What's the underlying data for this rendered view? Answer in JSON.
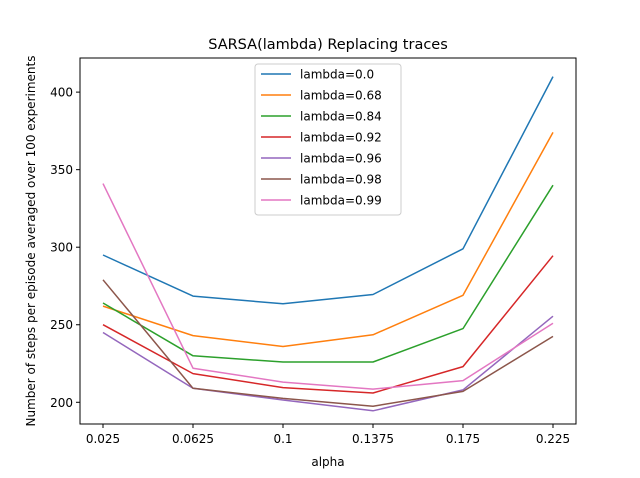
{
  "chart_data": {
    "type": "line",
    "title": "SARSA(lambda) Replacing traces",
    "xlabel": "alpha",
    "ylabel": "Number of steps per episode averaged over 100 experiments",
    "categories": [
      "0.025",
      "0.0625",
      "0.1",
      "0.1375",
      "0.175",
      "0.225"
    ],
    "y_ticks": [
      200,
      250,
      300,
      350,
      400
    ],
    "ylim": [
      186,
      422
    ],
    "legend_position": "upper-center",
    "series": [
      {
        "name": "lambda=0.0",
        "color": "#1f77b4",
        "values": [
          295,
          268.5,
          263.5,
          269.5,
          299,
          410
        ]
      },
      {
        "name": "lambda=0.68",
        "color": "#ff7f0e",
        "values": [
          262,
          243,
          236,
          243.5,
          269,
          374
        ]
      },
      {
        "name": "lambda=0.84",
        "color": "#2ca02c",
        "values": [
          264,
          230,
          226,
          226,
          247.5,
          340
        ]
      },
      {
        "name": "lambda=0.92",
        "color": "#d62728",
        "values": [
          250,
          218.5,
          209.5,
          206,
          223,
          294.5
        ]
      },
      {
        "name": "lambda=0.96",
        "color": "#9467bd",
        "values": [
          245,
          209,
          201.5,
          194.5,
          208,
          255.5
        ]
      },
      {
        "name": "lambda=0.98",
        "color": "#8c564b",
        "values": [
          279,
          209,
          202.5,
          197.5,
          207,
          242.5
        ]
      },
      {
        "name": "lambda=0.99",
        "color": "#e377c2",
        "values": [
          341,
          222,
          213,
          208.5,
          214,
          251
        ]
      }
    ]
  }
}
